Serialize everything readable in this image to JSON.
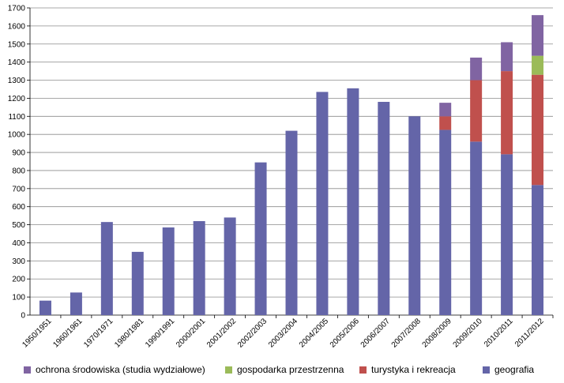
{
  "chart_data": {
    "type": "bar",
    "stacked": true,
    "categories": [
      "1950/1951",
      "1960/1961",
      "1970/1971",
      "1980/1981",
      "1990/1991",
      "2000/2001",
      "2001/2002",
      "2002/2003",
      "2003/2004",
      "2004/2005",
      "2005/2006",
      "2006/2007",
      "2007/2008",
      "2008/2009",
      "2009/2010",
      "2010/2011",
      "2011/2012"
    ],
    "series": [
      {
        "name": "geografia",
        "color": "#6465A8",
        "values": [
          80,
          125,
          515,
          350,
          485,
          520,
          540,
          845,
          1020,
          1235,
          1255,
          1180,
          1100,
          1025,
          960,
          890,
          720
        ]
      },
      {
        "name": "turystyka i rekreacja",
        "color": "#C0504D",
        "values": [
          0,
          0,
          0,
          0,
          0,
          0,
          0,
          0,
          0,
          0,
          0,
          0,
          0,
          75,
          340,
          460,
          610
        ]
      },
      {
        "name": "gospodarka przestrzenna",
        "color": "#9BBB59",
        "values": [
          0,
          0,
          0,
          0,
          0,
          0,
          0,
          0,
          0,
          0,
          0,
          0,
          0,
          0,
          0,
          0,
          105
        ]
      },
      {
        "name": "ochrona środowiska (studia wydziałowe)",
        "color": "#8064A2",
        "values": [
          0,
          0,
          0,
          0,
          0,
          0,
          0,
          0,
          0,
          0,
          0,
          0,
          0,
          75,
          125,
          160,
          225
        ]
      }
    ],
    "ylim": [
      0,
      1700
    ],
    "yticks": [
      0,
      100,
      200,
      300,
      400,
      500,
      600,
      700,
      800,
      900,
      1000,
      1100,
      1200,
      1300,
      1400,
      1500,
      1600,
      1700
    ],
    "title": "",
    "xlabel": "",
    "ylabel": "",
    "grid": true,
    "legend_placement": "bottom",
    "legend_order": [
      "ochrona środowiska (studia wydziałowe)",
      "gospodarka przestrzenna",
      "turystyka i rekreacja",
      "geografia"
    ]
  }
}
